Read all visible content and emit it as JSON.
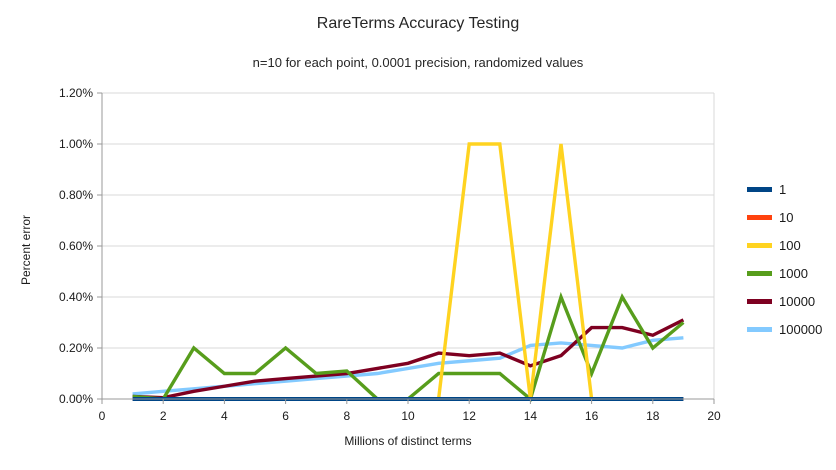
{
  "chart_data": {
    "type": "line",
    "title": "RareTerms Accuracy Testing",
    "subtitle": "n=10 for each point, 0.0001 precision, randomized values",
    "xlabel": "Millions of distinct terms",
    "ylabel": "Percent error",
    "grid": "horizontal",
    "legend_position": "right",
    "x_axis": {
      "min": 0,
      "max": 20,
      "tick_step": 2,
      "tick_labels": [
        "0",
        "2",
        "4",
        "6",
        "8",
        "10",
        "12",
        "14",
        "16",
        "18",
        "20"
      ]
    },
    "y_axis": {
      "min_percent": 0.0,
      "max_percent": 1.2,
      "tick_step_percent": 0.2,
      "tick_labels": [
        "0.00%",
        "0.20%",
        "0.40%",
        "0.60%",
        "0.80%",
        "1.00%",
        "1.20%"
      ]
    },
    "x": [
      1,
      2,
      3,
      4,
      5,
      6,
      7,
      8,
      9,
      10,
      11,
      12,
      13,
      14,
      15,
      16,
      17,
      18,
      19
    ],
    "series": [
      {
        "name": "1",
        "color": "#004586",
        "values_percent": [
          0,
          0,
          0,
          0,
          0,
          0,
          0,
          0,
          0,
          0,
          0,
          0,
          0,
          0,
          0,
          0,
          0,
          0,
          0
        ]
      },
      {
        "name": "10",
        "color": "#FF420E",
        "values_percent": [
          0,
          0,
          0,
          0,
          0,
          0,
          0,
          0,
          0,
          0,
          0,
          0,
          0,
          0,
          0,
          0,
          0,
          0,
          0
        ]
      },
      {
        "name": "100",
        "color": "#FFD320",
        "values_percent": [
          0,
          0,
          0,
          0,
          0,
          0,
          0,
          0,
          0,
          0,
          0,
          1.0,
          1.0,
          0,
          1.0,
          0,
          0,
          0,
          0
        ]
      },
      {
        "name": "1000",
        "color": "#579D1C",
        "values_percent": [
          0.01,
          0,
          0.2,
          0.1,
          0.1,
          0.2,
          0.1,
          0.11,
          0,
          0,
          0.1,
          0.1,
          0.1,
          0,
          0.4,
          0.1,
          0.4,
          0.2,
          0.3
        ]
      },
      {
        "name": "10000",
        "color": "#7E0021",
        "values_percent": [
          0.01,
          0.005,
          0.03,
          0.05,
          0.07,
          0.08,
          0.09,
          0.1,
          0.12,
          0.14,
          0.18,
          0.17,
          0.18,
          0.13,
          0.17,
          0.28,
          0.28,
          0.25,
          0.31
        ]
      },
      {
        "name": "100000",
        "color": "#83CAFF",
        "values_percent": [
          0.02,
          0.03,
          0.04,
          0.05,
          0.06,
          0.07,
          0.08,
          0.09,
          0.1,
          0.12,
          0.14,
          0.15,
          0.16,
          0.21,
          0.22,
          0.21,
          0.2,
          0.23,
          0.24
        ]
      }
    ],
    "draw_order_back_to_front": [
      "100000",
      "10000",
      "1000",
      "100",
      "10",
      "1"
    ]
  },
  "style_colors": {
    "gridline": "#d9d9d9",
    "axis_line": "#999999",
    "tick": "#999999",
    "text": "#1a1a1a"
  }
}
